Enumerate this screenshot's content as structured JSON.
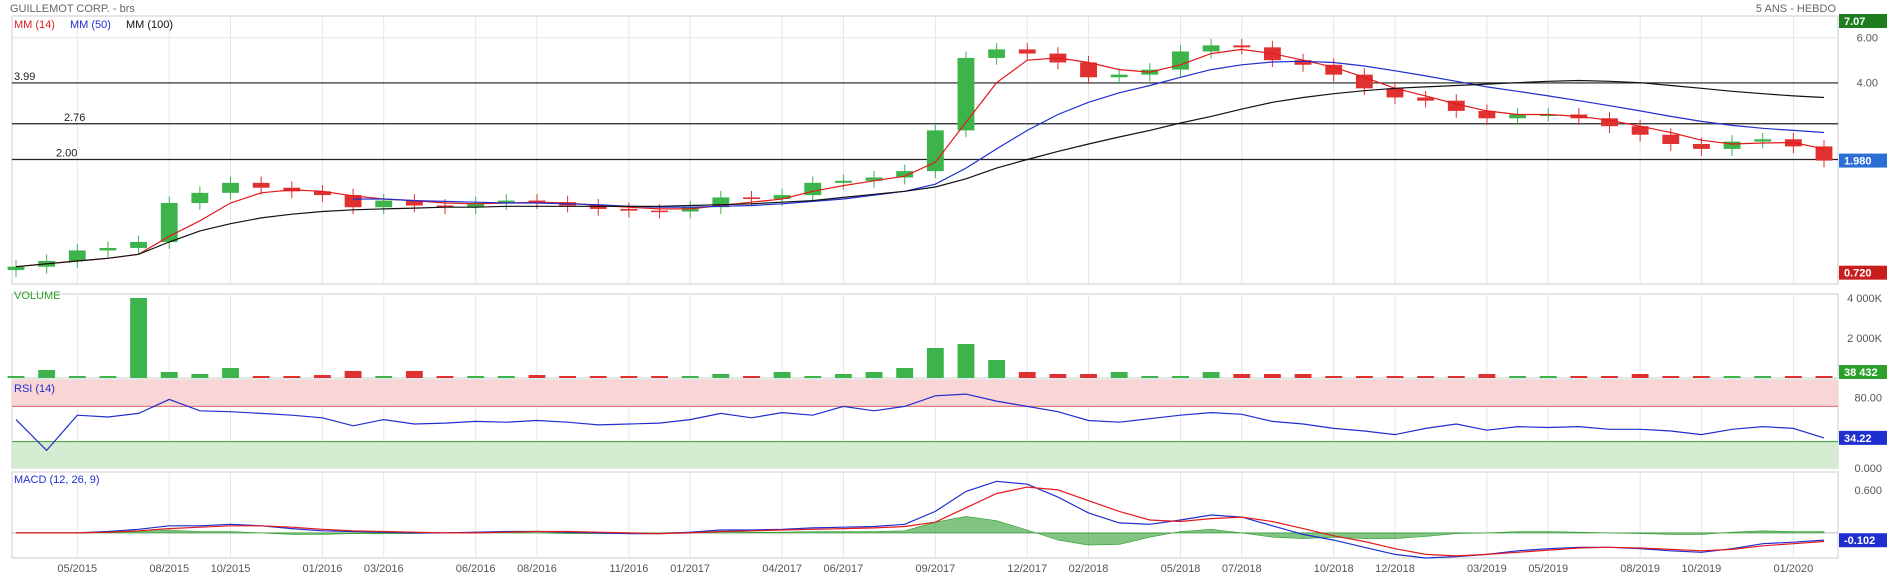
{
  "header": {
    "title": "GUILLEMOT CORP. - brs",
    "period": "5 ANS - HEBDO"
  },
  "colors": {
    "up": "#3cb44b",
    "down": "#e03030",
    "ma14": "#e31a1c",
    "ma50": "#1f2ecf",
    "ma100": "#111111",
    "rsi": "#1f2ecf",
    "macd": "#1f2ecf",
    "signal": "#e31a1c",
    "hist": "#2e9e2e",
    "volumeLabel": "#2ca02c",
    "lastPrice": "#2b6fd6",
    "maxBadge": "#1e7d1e",
    "minBadge": "#c81e1e",
    "grid": "#e6e6e6"
  },
  "chart_data": {
    "type": "candlestick",
    "interval": "weekly",
    "x": [
      "03/2015",
      "04/2015",
      "05/2015",
      "06/2015",
      "07/2015",
      "08/2015",
      "09/2015",
      "10/2015",
      "11/2015",
      "12/2015",
      "01/2016",
      "02/2016",
      "03/2016",
      "04/2016",
      "05/2016",
      "06/2016",
      "07/2016",
      "08/2016",
      "09/2016",
      "10/2016",
      "11/2016",
      "12/2016",
      "01/2017",
      "02/2017",
      "03/2017",
      "04/2017",
      "05/2017",
      "06/2017",
      "07/2017",
      "08/2017",
      "09/2017",
      "10/2017",
      "11/2017",
      "12/2017",
      "01/2018",
      "02/2018",
      "03/2018",
      "04/2018",
      "05/2018",
      "06/2018",
      "07/2018",
      "08/2018",
      "09/2018",
      "10/2018",
      "11/2018",
      "12/2018",
      "01/2019",
      "02/2019",
      "03/2019",
      "04/2019",
      "05/2019",
      "06/2019",
      "07/2019",
      "08/2019",
      "09/2019",
      "10/2019",
      "11/2019",
      "12/2019",
      "01/2020",
      "02/2020"
    ],
    "close": [
      0.76,
      0.8,
      0.88,
      0.9,
      0.95,
      1.35,
      1.48,
      1.62,
      1.55,
      1.5,
      1.45,
      1.3,
      1.38,
      1.32,
      1.3,
      1.35,
      1.38,
      1.36,
      1.32,
      1.28,
      1.26,
      1.25,
      1.3,
      1.42,
      1.4,
      1.45,
      1.62,
      1.65,
      1.7,
      1.8,
      2.6,
      5.0,
      5.4,
      5.2,
      4.8,
      4.2,
      4.3,
      4.5,
      5.3,
      5.6,
      5.5,
      4.9,
      4.7,
      4.3,
      3.8,
      3.5,
      3.4,
      3.1,
      2.9,
      3.0,
      3.0,
      2.9,
      2.7,
      2.5,
      2.3,
      2.2,
      2.35,
      2.4,
      2.25,
      1.98
    ],
    "volume": [
      0.1,
      0.4,
      0.1,
      0.1,
      4.0,
      0.3,
      0.2,
      0.5,
      0.1,
      0.1,
      0.15,
      0.35,
      0.1,
      0.35,
      0.1,
      0.1,
      0.1,
      0.15,
      0.1,
      0.1,
      0.1,
      0.1,
      0.1,
      0.2,
      0.1,
      0.3,
      0.1,
      0.2,
      0.3,
      0.5,
      1.5,
      1.7,
      0.9,
      0.3,
      0.2,
      0.2,
      0.3,
      0.1,
      0.1,
      0.3,
      0.2,
      0.2,
      0.2,
      0.1,
      0.1,
      0.1,
      0.1,
      0.1,
      0.2,
      0.1,
      0.1,
      0.1,
      0.1,
      0.2,
      0.1,
      0.1,
      0.1,
      0.1,
      0.1,
      0.1
    ],
    "overlays": [
      {
        "name": "MM (14)",
        "color": "#e31a1c",
        "values": [
          0.76,
          0.78,
          0.8,
          0.82,
          0.85,
          1.0,
          1.15,
          1.35,
          1.48,
          1.52,
          1.5,
          1.44,
          1.4,
          1.38,
          1.35,
          1.34,
          1.35,
          1.36,
          1.35,
          1.32,
          1.3,
          1.28,
          1.28,
          1.32,
          1.36,
          1.4,
          1.5,
          1.58,
          1.65,
          1.72,
          1.95,
          2.8,
          4.0,
          4.9,
          5.0,
          4.8,
          4.5,
          4.4,
          4.7,
          5.2,
          5.4,
          5.2,
          4.9,
          4.6,
          4.2,
          3.8,
          3.55,
          3.3,
          3.1,
          3.0,
          3.0,
          2.95,
          2.85,
          2.7,
          2.55,
          2.38,
          2.3,
          2.32,
          2.33,
          2.2
        ]
      },
      {
        "name": "MM (50)",
        "color": "#1f2ecf",
        "values": [
          null,
          null,
          null,
          null,
          null,
          null,
          null,
          null,
          null,
          null,
          null,
          1.4,
          1.4,
          1.38,
          1.37,
          1.36,
          1.35,
          1.35,
          1.34,
          1.33,
          1.31,
          1.3,
          1.3,
          1.31,
          1.32,
          1.34,
          1.37,
          1.4,
          1.45,
          1.5,
          1.6,
          1.85,
          2.2,
          2.6,
          3.0,
          3.35,
          3.65,
          3.9,
          4.2,
          4.5,
          4.7,
          4.82,
          4.85,
          4.8,
          4.65,
          4.45,
          4.25,
          4.05,
          3.85,
          3.7,
          3.55,
          3.4,
          3.25,
          3.1,
          2.95,
          2.82,
          2.72,
          2.65,
          2.6,
          2.55
        ]
      },
      {
        "name": "MM (100)",
        "color": "#111111",
        "values": [
          0.76,
          0.78,
          0.8,
          0.82,
          0.85,
          0.95,
          1.05,
          1.12,
          1.18,
          1.22,
          1.25,
          1.27,
          1.28,
          1.29,
          1.3,
          1.3,
          1.31,
          1.31,
          1.31,
          1.31,
          1.31,
          1.31,
          1.32,
          1.33,
          1.34,
          1.36,
          1.38,
          1.42,
          1.46,
          1.5,
          1.56,
          1.68,
          1.85,
          2.0,
          2.15,
          2.3,
          2.45,
          2.6,
          2.78,
          2.95,
          3.15,
          3.35,
          3.5,
          3.62,
          3.72,
          3.8,
          3.85,
          3.9,
          3.95,
          4.0,
          4.05,
          4.08,
          4.05,
          4.0,
          3.9,
          3.8,
          3.7,
          3.62,
          3.55,
          3.5
        ]
      }
    ],
    "levels": [
      {
        "label": "3.99",
        "value": 3.99
      },
      {
        "label": "2.76",
        "value": 2.76
      },
      {
        "label": "2.00",
        "value": 2.0
      }
    ],
    "price_axis": {
      "scale": "log",
      "ylim": [
        0.65,
        7.3
      ],
      "ticks": [
        "6.00",
        "4.00"
      ],
      "ticks_values": [
        6.0,
        4.0
      ]
    },
    "badges": {
      "max": "7.07",
      "last": "1.980",
      "min": "0.720"
    },
    "x_ticks": [
      "05/2015",
      "08/2015",
      "10/2015",
      "01/2016",
      "03/2016",
      "06/2016",
      "08/2016",
      "11/2016",
      "01/2017",
      "04/2017",
      "06/2017",
      "09/2017",
      "12/2017",
      "02/2018",
      "05/2018",
      "07/2018",
      "10/2018",
      "12/2018",
      "03/2019",
      "05/2019",
      "08/2019",
      "10/2019",
      "01/2020"
    ],
    "x_tick_index": [
      2,
      5,
      7,
      10,
      12,
      15,
      17,
      20,
      22,
      25,
      27,
      30,
      33,
      35,
      38,
      40,
      43,
      45,
      48,
      50,
      53,
      55,
      58
    ],
    "volume_panel": {
      "label": "VOLUME",
      "ticks": [
        "4 000K",
        "2 000K"
      ],
      "ticks_values": [
        4.0,
        2.0
      ],
      "ylim": [
        0,
        4.2
      ],
      "last": "38 432"
    },
    "rsi_panel": {
      "label": "RSI (14)",
      "ticks": [
        "80.00",
        "0.000"
      ],
      "ticks_values": [
        80,
        0
      ],
      "ylim": [
        0,
        100
      ],
      "overbought": 70,
      "oversold": 30,
      "last": "34.22",
      "values": [
        55,
        20,
        60,
        58,
        62,
        78,
        65,
        64,
        62,
        60,
        57,
        48,
        55,
        50,
        51,
        53,
        52,
        54,
        52,
        49,
        50,
        51,
        55,
        62,
        57,
        63,
        60,
        70,
        65,
        70,
        82,
        84,
        76,
        70,
        64,
        54,
        52,
        56,
        60,
        63,
        61,
        53,
        50,
        45,
        42,
        38,
        45,
        50,
        43,
        47,
        46,
        47,
        44,
        44,
        42,
        38,
        44,
        47,
        45,
        34.22
      ]
    },
    "macd_panel": {
      "label": "MACD (12, 26, 9)",
      "ticks": [
        "0.600"
      ],
      "ticks_values": [
        0.6
      ],
      "ylim": [
        -0.35,
        0.85
      ],
      "last": "-0.102",
      "macd": [
        0,
        0,
        0,
        0.02,
        0.05,
        0.1,
        0.1,
        0.12,
        0.1,
        0.06,
        0.03,
        0.02,
        0.01,
        0,
        0,
        0.01,
        0.02,
        0.02,
        0.01,
        0,
        -0.01,
        -0.01,
        0.01,
        0.04,
        0.04,
        0.05,
        0.07,
        0.08,
        0.09,
        0.12,
        0.3,
        0.58,
        0.72,
        0.68,
        0.5,
        0.28,
        0.14,
        0.12,
        0.18,
        0.25,
        0.22,
        0.1,
        -0.02,
        -0.1,
        -0.2,
        -0.3,
        -0.35,
        -0.33,
        -0.3,
        -0.25,
        -0.22,
        -0.2,
        -0.2,
        -0.22,
        -0.25,
        -0.27,
        -0.22,
        -0.15,
        -0.13,
        -0.1
      ],
      "signal": [
        0,
        0,
        0,
        0.01,
        0.03,
        0.06,
        0.08,
        0.1,
        0.1,
        0.08,
        0.05,
        0.03,
        0.02,
        0.01,
        0,
        0,
        0.01,
        0.02,
        0.02,
        0.01,
        0,
        -0.01,
        0,
        0.02,
        0.03,
        0.04,
        0.05,
        0.06,
        0.07,
        0.09,
        0.15,
        0.35,
        0.55,
        0.64,
        0.6,
        0.45,
        0.3,
        0.18,
        0.16,
        0.2,
        0.22,
        0.16,
        0.06,
        -0.04,
        -0.12,
        -0.22,
        -0.3,
        -0.32,
        -0.3,
        -0.27,
        -0.24,
        -0.21,
        -0.2,
        -0.21,
        -0.23,
        -0.25,
        -0.23,
        -0.18,
        -0.15,
        -0.12
      ]
    }
  }
}
